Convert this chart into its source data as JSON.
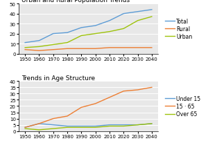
{
  "years": [
    1950,
    1960,
    1970,
    1980,
    1990,
    2000,
    2010,
    2020,
    2030,
    2040
  ],
  "chart1": {
    "title": "Urban and Rural Population Trends",
    "ylim": [
      0,
      50
    ],
    "yticks": [
      0,
      10,
      20,
      30,
      40,
      50
    ],
    "total": [
      11,
      13,
      20,
      21,
      26,
      28,
      33,
      40,
      42,
      44
    ],
    "rural": [
      4,
      3,
      4,
      5,
      5,
      5,
      6,
      6,
      6,
      6
    ],
    "urban": [
      6,
      7,
      9,
      11,
      18,
      20,
      22,
      25,
      33,
      37
    ],
    "colors": {
      "total": "#5b9bd5",
      "rural": "#ed7d31",
      "urban": "#9dc209"
    },
    "legend": [
      "Total",
      "Rural",
      "Urban"
    ]
  },
  "chart2": {
    "title": "Trends in Age Structure",
    "ylim": [
      0,
      40
    ],
    "yticks": [
      0,
      5,
      10,
      15,
      20,
      25,
      30,
      35,
      40
    ],
    "under15": [
      3,
      6,
      5,
      4,
      4,
      4,
      5,
      5,
      5,
      6
    ],
    "age1565": [
      3,
      6,
      10,
      12,
      19,
      22,
      27,
      32,
      33,
      35
    ],
    "over65": [
      2,
      1,
      2,
      3,
      3,
      3,
      4,
      4,
      5,
      6
    ],
    "colors": {
      "under15": "#5b9bd5",
      "age1565": "#ed7d31",
      "over65": "#9dc209"
    },
    "legend": [
      "Under 15",
      "15 · 65",
      "Over 65"
    ]
  },
  "xticks": [
    1950,
    1960,
    1970,
    1980,
    1990,
    2000,
    2010,
    2020,
    2030,
    2040
  ],
  "background": "#ffffff",
  "plot_bg": "#e8e8e8",
  "grid_color": "#ffffff",
  "legend_fontsize": 5.5,
  "axis_fontsize": 5,
  "title_fontsize": 6.5,
  "linewidth": 1.0
}
